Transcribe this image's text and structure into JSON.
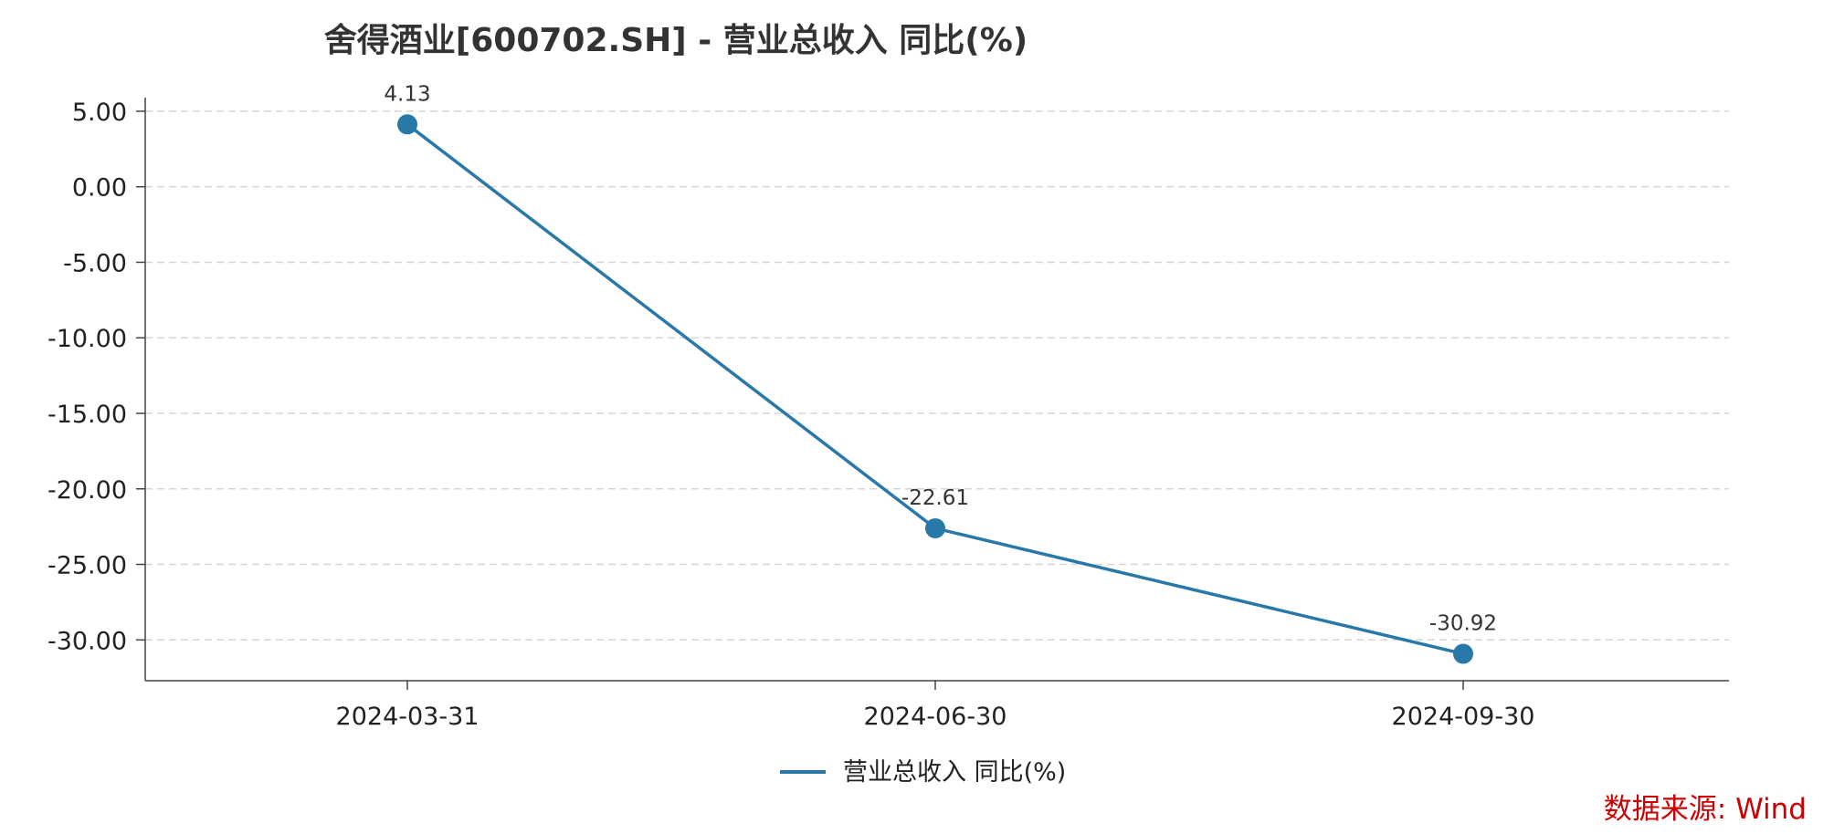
{
  "chart_data": {
    "type": "line",
    "title": "舍得酒业[600702.SH] - 营业总收入 同比(%)",
    "x": [
      "2024-03-31",
      "2024-06-30",
      "2024-09-30"
    ],
    "series": [
      {
        "name": "营业总收入 同比(%)",
        "values": [
          4.13,
          -22.61,
          -30.92
        ],
        "data_labels": [
          "4.13",
          "-22.61",
          "-30.92"
        ],
        "color": "#2878a8"
      }
    ],
    "yticks": [
      "5.00",
      "0.00",
      "-5.00",
      "-10.00",
      "-15.00",
      "-20.00",
      "-25.00",
      "-30.00"
    ],
    "ytick_values": [
      5,
      0,
      -5,
      -10,
      -15,
      -20,
      -25,
      -30
    ],
    "ylim": [
      -32.7,
      5.9
    ],
    "grid": true,
    "legend_position": "bottom-center",
    "source": "数据来源: Wind",
    "source_color": "#cc0000"
  }
}
